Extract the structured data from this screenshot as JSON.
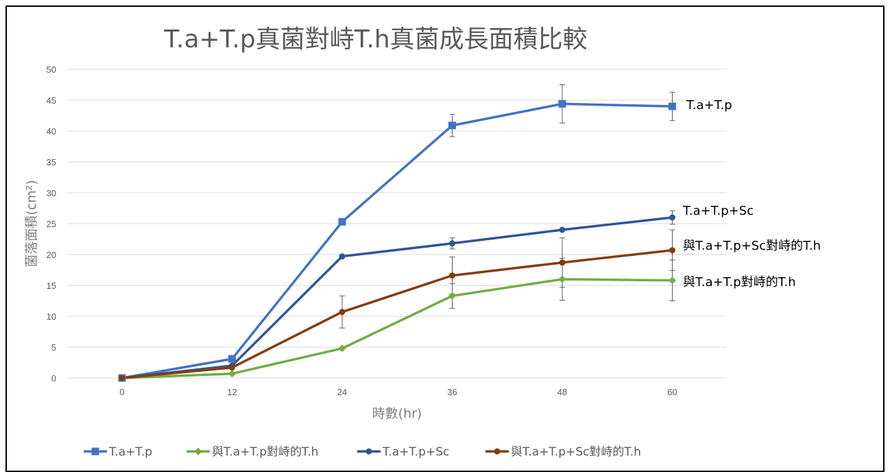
{
  "chart_data": {
    "type": "line",
    "title": "T.a+T.p真菌對峙T.h真菌成長面積比較",
    "xlabel": "時數(hr)",
    "ylabel": "菌落面積(cm²)",
    "x": [
      0,
      12,
      24,
      36,
      48,
      60
    ],
    "xticks": [
      "0",
      "12",
      "24",
      "36",
      "48",
      "60"
    ],
    "ylim": [
      0,
      50
    ],
    "yticks": [
      "0",
      "5",
      "10",
      "15",
      "20",
      "25",
      "30",
      "35",
      "40",
      "45",
      "50"
    ],
    "grid": true,
    "legend_position": "bottom",
    "series": [
      {
        "name": "T.a+T.p",
        "color": "#4472c4",
        "marker": "square",
        "values": [
          0,
          3.1,
          25.3,
          40.9,
          44.4,
          44.0
        ],
        "errors": [
          0,
          0,
          0,
          1.8,
          3.1,
          2.3
        ],
        "annotation": "T.a+T.p"
      },
      {
        "name": "與T.a+T.p對峙的T.h",
        "color": "#70ad47",
        "marker": "diamond",
        "values": [
          0,
          0.7,
          4.8,
          13.3,
          16.0,
          15.8
        ],
        "errors": [
          0,
          0,
          0,
          2.0,
          3.4,
          3.3
        ],
        "annotation": "與T.a+T.p對峙的T.h"
      },
      {
        "name": "T.a+T.p+Sc",
        "color": "#2f5597",
        "marker": "circle",
        "values": [
          0,
          2.0,
          19.7,
          21.8,
          24.0,
          26.0
        ],
        "errors": [
          0,
          0,
          0,
          0.9,
          0,
          1.1
        ],
        "annotation": "T.a+T.p+Sc"
      },
      {
        "name": "與T.a+T.p+Sc對峙的T.h",
        "color": "#843c0c",
        "marker": "circle",
        "values": [
          0,
          1.7,
          10.7,
          16.6,
          18.7,
          20.7
        ],
        "errors": [
          0,
          0,
          2.6,
          3.0,
          4.0,
          3.3
        ],
        "annotation": "與T.a+T.p+Sc對峙的T.h"
      }
    ]
  }
}
